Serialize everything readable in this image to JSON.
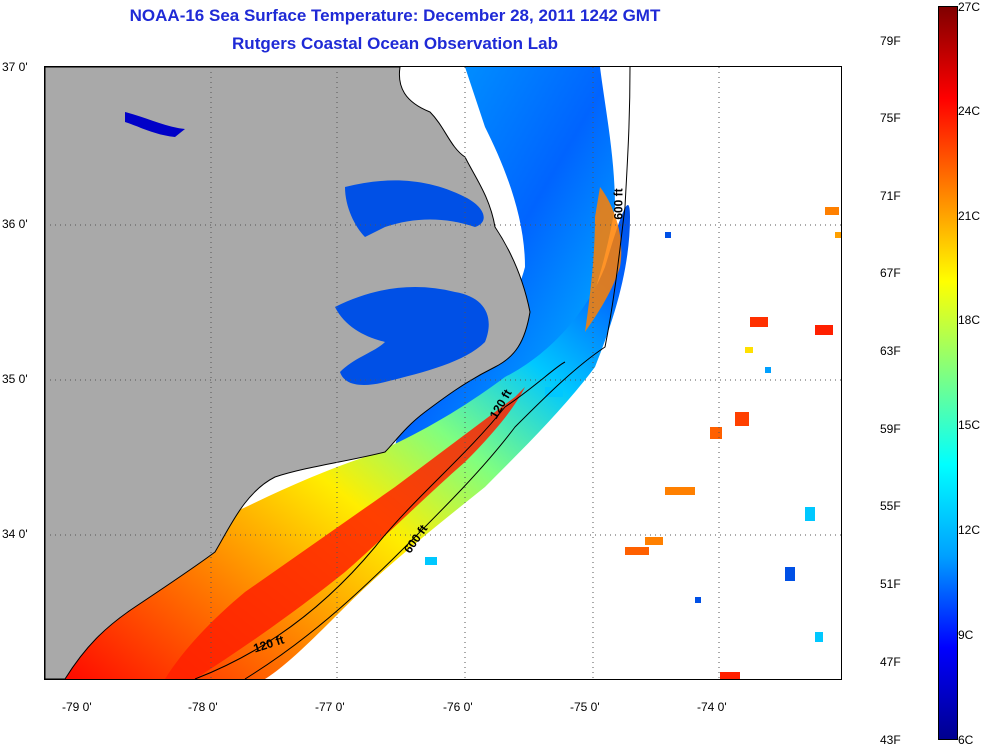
{
  "title": {
    "line1": "NOAA-16 Sea Surface Temperature:  December 28, 2011 1242 GMT",
    "line2": "Rutgers Coastal Ocean Observation Lab"
  },
  "map": {
    "lat_ticks": [
      "37 0'",
      "36 0'",
      "35 0'",
      "34 0'"
    ],
    "lon_ticks": [
      "-79 0'",
      "-78 0'",
      "-77 0'",
      "-76 0'",
      "-75 0'",
      "-74 0'"
    ],
    "isobaths": [
      {
        "label": "120 ft"
      },
      {
        "label": "600 ft"
      },
      {
        "label": "120 ft"
      },
      {
        "label": "600 ft"
      }
    ],
    "colors": {
      "land": "#a9a9a9",
      "no_data": "#ffffff",
      "coastline": "#000000"
    }
  },
  "colorbar": {
    "fahrenheit_labels": [
      "79F",
      "75F",
      "71F",
      "67F",
      "63F",
      "59F",
      "55F",
      "51F",
      "47F",
      "43F"
    ],
    "celsius_labels": [
      "27C",
      "24C",
      "21C",
      "18C",
      "15C",
      "12C",
      "9C",
      "6C"
    ],
    "range_c": [
      6,
      27
    ],
    "colormap": "jet",
    "colors": [
      "#00008f",
      "#0000ff",
      "#00a0ff",
      "#00ffff",
      "#80ff80",
      "#ffff00",
      "#ff8000",
      "#ff0000",
      "#800000"
    ]
  }
}
